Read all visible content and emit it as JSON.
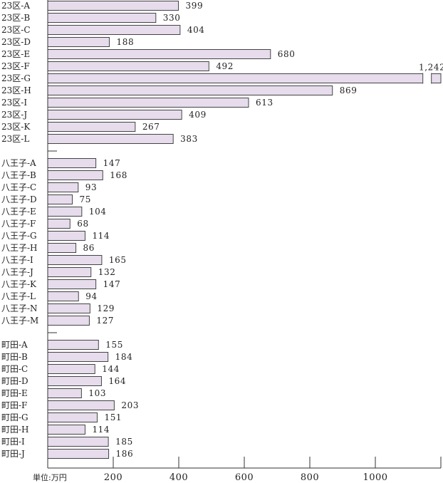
{
  "chart_data": {
    "type": "bar",
    "orientation": "horizontal",
    "unit_label": "単位:万円",
    "groups": [
      {
        "categories": [
          "23区-A",
          "23区-B",
          "23区-C",
          "23区-D",
          "23区-E",
          "23区-F",
          "23区-G",
          "23区-H",
          "23区-I",
          "23区-J",
          "23区-K",
          "23区-L"
        ],
        "values": [
          399,
          330,
          404,
          188,
          680,
          492,
          1242,
          869,
          613,
          409,
          267,
          383
        ],
        "value_labels": [
          "399",
          "330",
          "404",
          "188",
          "680",
          "492",
          "1,242",
          "869",
          "613",
          "409",
          "267",
          "383"
        ]
      },
      {
        "categories": [
          "八王子-A",
          "八王子-B",
          "八王子-C",
          "八王子-D",
          "八王子-E",
          "八王子-F",
          "八王子-G",
          "八王子-H",
          "八王子-I",
          "八王子-J",
          "八王子-K",
          "八王子-L",
          "八王子-N",
          "八王子-M"
        ],
        "values": [
          147,
          168,
          93,
          75,
          104,
          68,
          114,
          86,
          165,
          132,
          147,
          94,
          129,
          127
        ],
        "value_labels": [
          "147",
          "168",
          "93",
          "75",
          "104",
          "68",
          "114",
          "86",
          "165",
          "132",
          "147",
          "94",
          "129",
          "127"
        ]
      },
      {
        "categories": [
          "町田-A",
          "町田-B",
          "町田-C",
          "町田-D",
          "町田-E",
          "町田-F",
          "町田-G",
          "町田-H",
          "町田-I",
          "町田-J"
        ],
        "values": [
          155,
          184,
          144,
          164,
          103,
          203,
          151,
          114,
          185,
          186
        ],
        "value_labels": [
          "155",
          "184",
          "144",
          "164",
          "103",
          "203",
          "151",
          "114",
          "185",
          "186"
        ]
      }
    ],
    "x_ticks": [
      {
        "value": 200,
        "label": "200"
      },
      {
        "value": 400,
        "label": "400"
      },
      {
        "value": 600,
        "label": "600"
      },
      {
        "value": 800,
        "label": "800"
      },
      {
        "value": 1000,
        "label": "1000"
      }
    ],
    "xlim": [
      0,
      1200
    ],
    "axis_break": true,
    "grid": false,
    "legend": "none",
    "colors": {
      "bar_fill": "#e6dcec",
      "bar_stroke": "#444444",
      "axis": "#333333"
    }
  }
}
